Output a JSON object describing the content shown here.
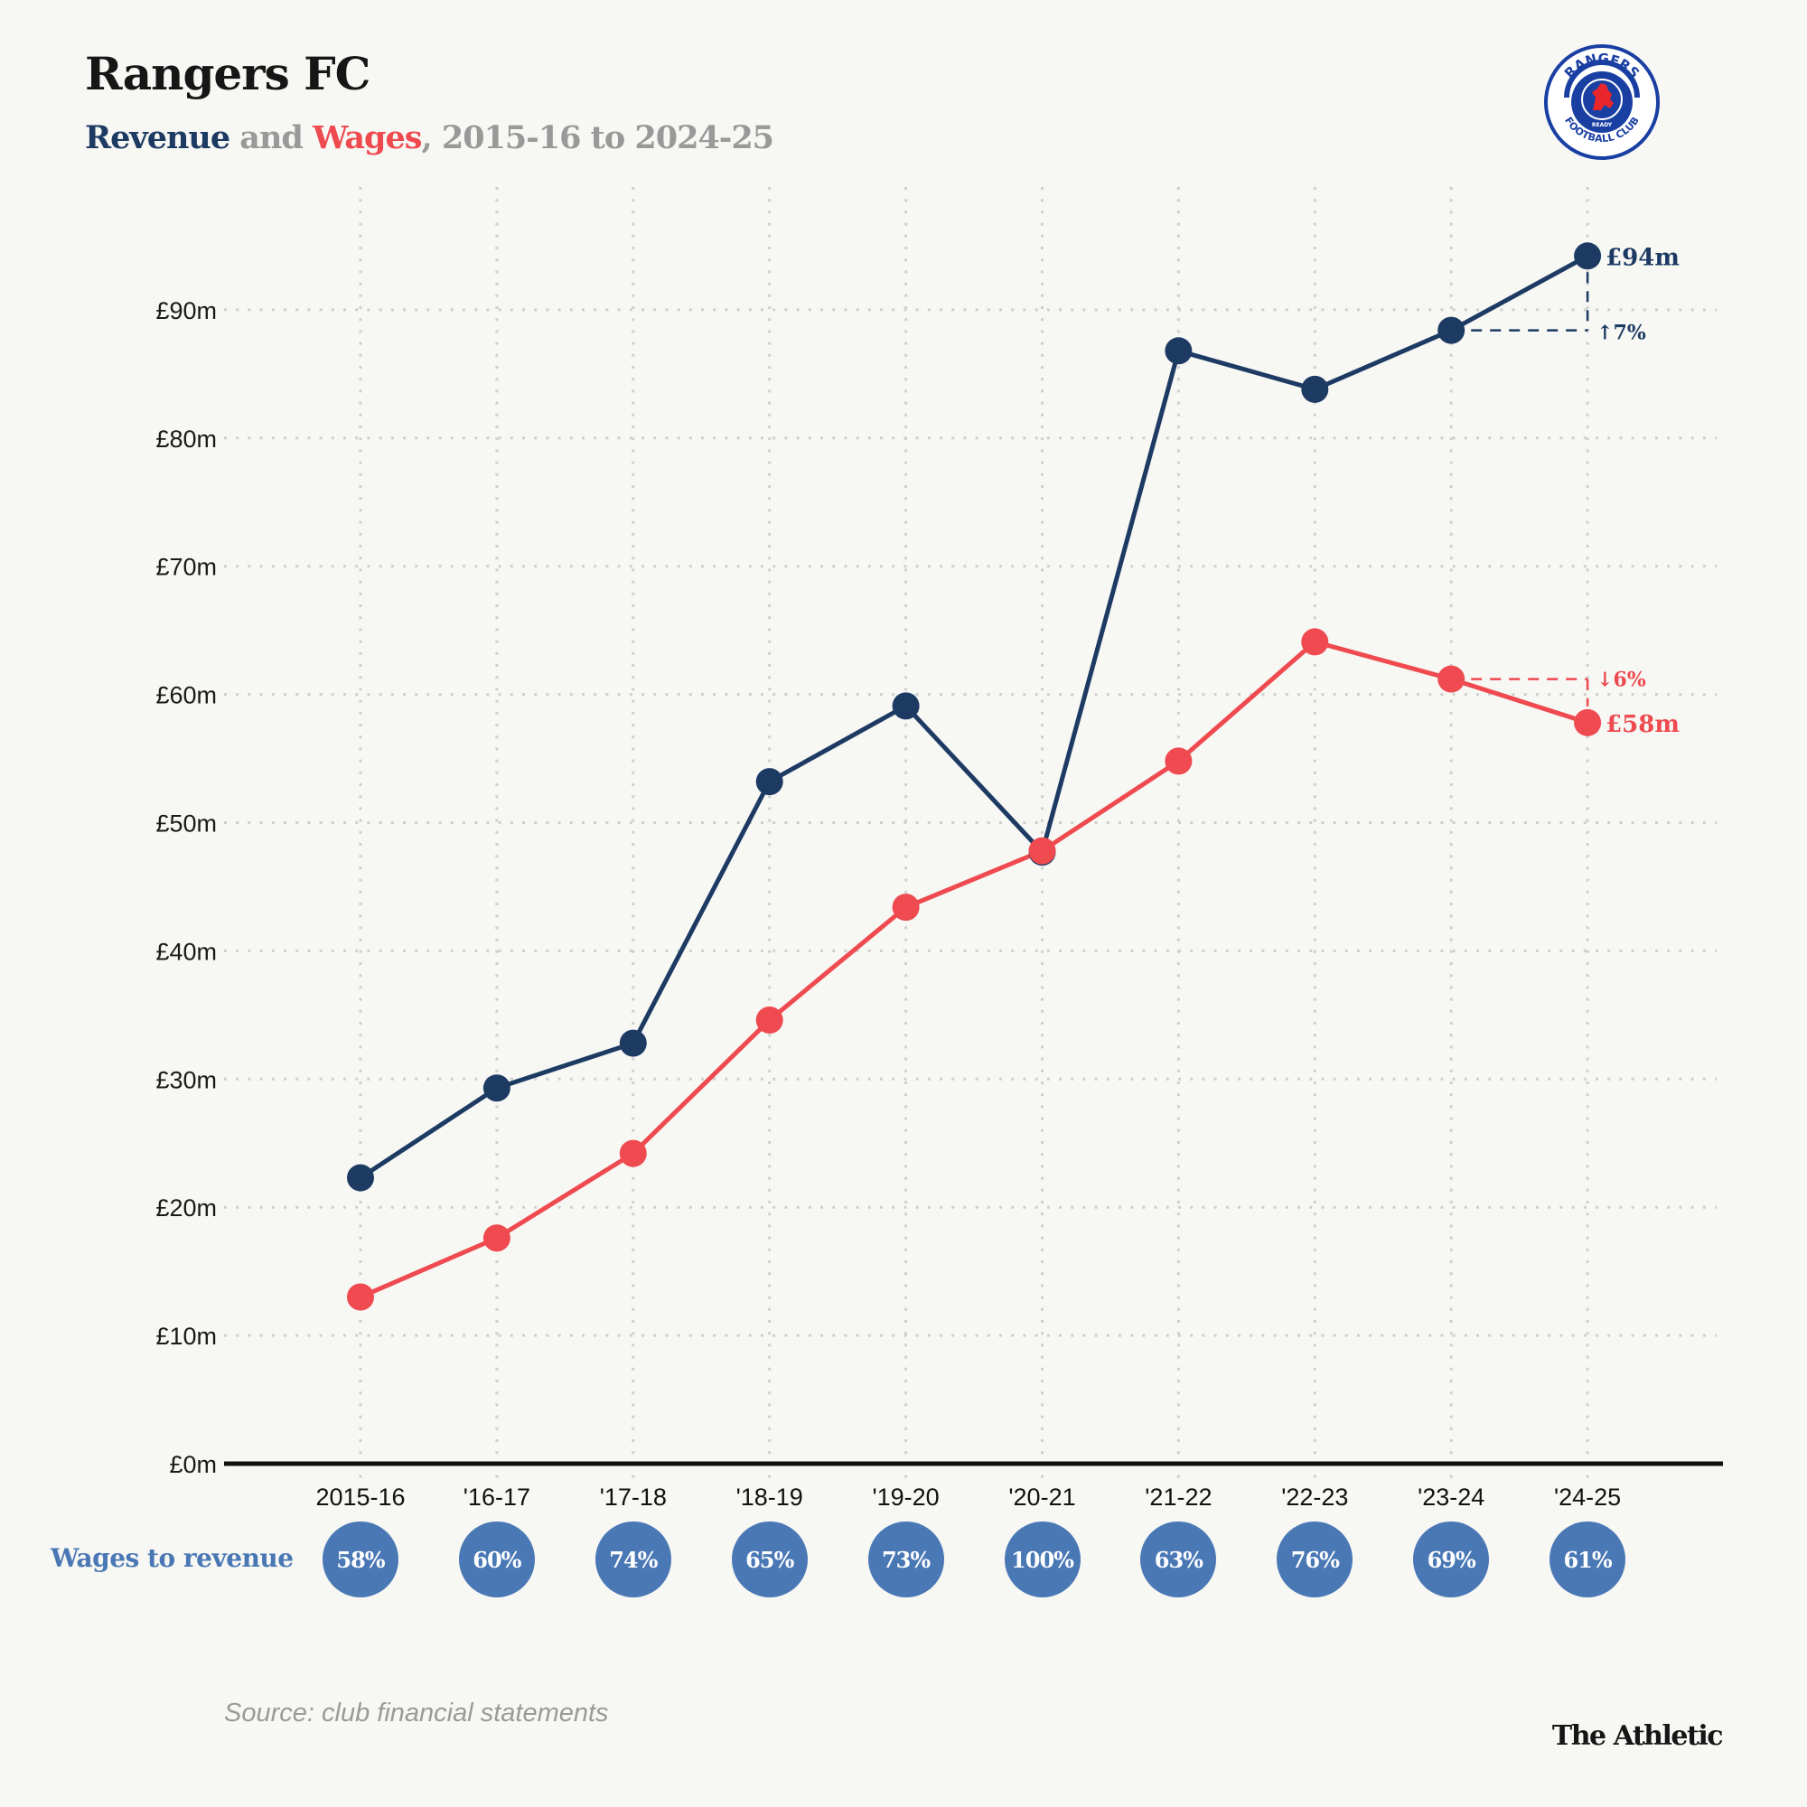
{
  "header": {
    "title": "Rangers FC",
    "subtitle_revenue": "Revenue",
    "subtitle_and": " and ",
    "subtitle_wages": "Wages",
    "subtitle_rest": ", 2015-16 to 2024-25"
  },
  "logo": {
    "icon": "rangers-crest-icon",
    "top_text": "RANGERS",
    "bottom_text": "FOOTBALL CLUB",
    "ribbon_text": "READY"
  },
  "colors": {
    "revenue": "#1d3a63",
    "wages": "#ee4a4f",
    "ratio": "#4a78b5",
    "grid": "#cfcfcf",
    "axis": "#111111",
    "background": "#f7f7f4"
  },
  "chart_data": {
    "type": "line",
    "title": "Rangers FC",
    "subtitle": "Revenue and Wages, 2015-16 to 2024-25",
    "xlabel": "",
    "ylabel": "",
    "categories": [
      "2015-16",
      "'16-17",
      "'17-18",
      "'18-19",
      "'19-20",
      "'20-21",
      "'21-22",
      "'22-23",
      "'23-24",
      "'24-25"
    ],
    "ylim": [
      0,
      95
    ],
    "yticks": [
      0,
      10,
      20,
      30,
      40,
      50,
      60,
      70,
      80,
      90
    ],
    "ytick_labels": [
      "£0m",
      "£10m",
      "£20m",
      "£30m",
      "£40m",
      "£50m",
      "£60m",
      "£70m",
      "£80m",
      "£90m"
    ],
    "grid": true,
    "series": [
      {
        "name": "Revenue",
        "color": "#1d3a63",
        "values": [
          22.3,
          29.3,
          32.8,
          53.2,
          59.1,
          47.7,
          86.8,
          83.8,
          88.4,
          94.2
        ]
      },
      {
        "name": "Wages",
        "color": "#ee4a4f",
        "values": [
          13.0,
          17.6,
          24.2,
          34.6,
          43.4,
          47.8,
          54.8,
          64.1,
          61.2,
          57.8
        ]
      }
    ],
    "annotations": [
      {
        "series": "Revenue",
        "label": "£94m",
        "change_label": "↑7%"
      },
      {
        "series": "Wages",
        "label": "£58m",
        "change_label": "↓6%"
      }
    ],
    "wages_to_revenue": {
      "label": "Wages to revenue",
      "values": [
        "58%",
        "60%",
        "74%",
        "65%",
        "73%",
        "100%",
        "63%",
        "76%",
        "69%",
        "61%"
      ]
    }
  },
  "footer": {
    "source": "Source: club financial statements",
    "brand": "The Athletic"
  }
}
